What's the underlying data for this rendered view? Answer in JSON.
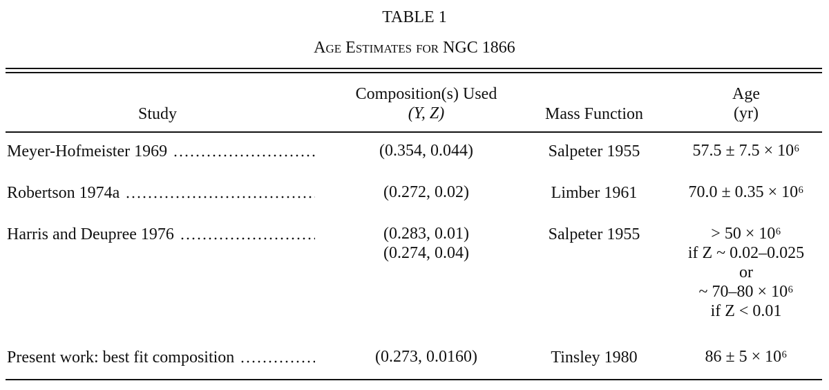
{
  "table": {
    "label": "TABLE 1",
    "title": "Age Estimates for NGC 1866",
    "header": {
      "study": "Study",
      "composition": [
        "Composition(s) Used",
        "(Y, Z)"
      ],
      "mass_function": "Mass Function",
      "age": [
        "Age",
        "(yr)"
      ]
    },
    "rows": [
      {
        "study": "Meyer-Hofmeister 1969",
        "composition": [
          "(0.354, 0.044)"
        ],
        "mass_function": "Salpeter 1955",
        "age": [
          "57.5 ± 7.5 × 10⁶"
        ]
      },
      {
        "study": "Robertson 1974a",
        "composition": [
          "(0.272, 0.02)"
        ],
        "mass_function": "Limber 1961",
        "age": [
          "70.0 ± 0.35 × 10⁶"
        ]
      },
      {
        "study": "Harris and Deupree 1976",
        "composition": [
          "(0.283, 0.01)",
          "(0.274, 0.04)"
        ],
        "mass_function": "Salpeter 1955",
        "age": [
          "> 50 × 10⁶",
          "if Z ~ 0.02–0.025",
          "or",
          "~ 70–80 × 10⁶",
          "if Z < 0.01"
        ]
      },
      {
        "study": "Present work: best fit composition",
        "composition": [
          "(0.273, 0.0160)"
        ],
        "mass_function": "Tinsley 1980",
        "age": [
          "86 ± 5 × 10⁶"
        ]
      }
    ]
  }
}
